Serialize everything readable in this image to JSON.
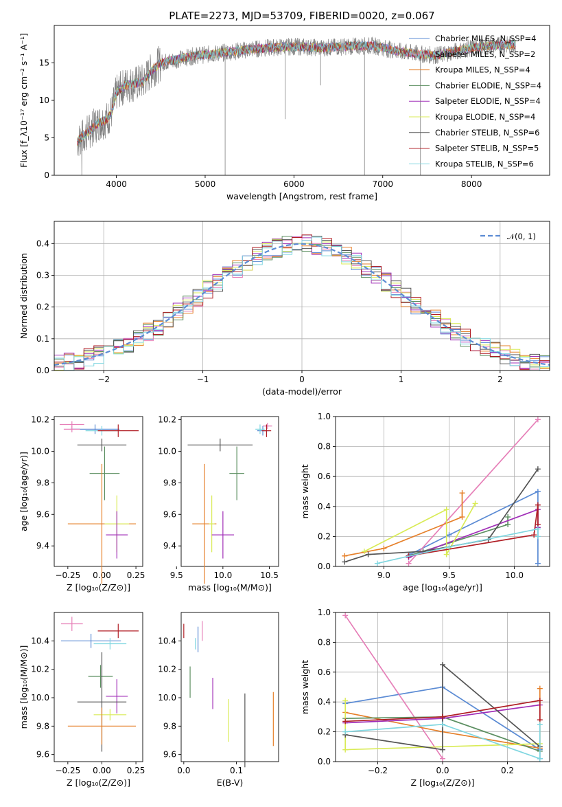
{
  "title": "PLATE=2273, MJD=53709, FIBERID=0020, z=0.067",
  "chart_data": [
    {
      "id": "spectrum",
      "type": "line",
      "xlabel": "wavelength [Angstrom, rest frame]",
      "ylabel": "Flux [f_λ10⁻¹⁷ erg cm⁻² s⁻¹ A⁻¹]",
      "xlim": [
        3300,
        8880
      ],
      "ylim": [
        0,
        20
      ],
      "xticks": [
        "4000",
        "5000",
        "6000",
        "7000",
        "8000"
      ],
      "yticks": [
        "0",
        "5",
        "10",
        "15"
      ],
      "grid": false,
      "legend_placement": "upper right",
      "continuum": {
        "x": [
          3560,
          3700,
          3800,
          3900,
          3950,
          4000,
          4100,
          4200,
          4300,
          4400,
          4500,
          4700,
          4900,
          5100,
          5300,
          5500,
          5700,
          6000,
          6300,
          6600,
          6900,
          7200,
          7400,
          7600,
          7800,
          8000,
          8200,
          8400,
          8500
        ],
        "y": [
          4.5,
          6.0,
          7.0,
          7.5,
          8.5,
          11.0,
          12.0,
          12.2,
          12.5,
          14.0,
          15.0,
          15.5,
          16.0,
          16.2,
          16.5,
          16.8,
          17.0,
          17.2,
          17.0,
          17.2,
          17.3,
          16.5,
          16.2,
          16.0,
          16.5,
          17.0,
          17.3,
          17.4,
          17.5
        ]
      },
      "series": [
        {
          "name": "Chabrier MILES, N_SSP=4",
          "color": "#5b8bd4"
        },
        {
          "name": "Salpeter MILES, N_SSP=2",
          "color": "#e67fb8"
        },
        {
          "name": "Kroupa MILES, N_SSP=4",
          "color": "#e6802a"
        },
        {
          "name": "Chabrier ELODIE, N_SSP=4",
          "color": "#5c8f61"
        },
        {
          "name": "Salpeter ELODIE, N_SSP=4",
          "color": "#a12fb8"
        },
        {
          "name": "Kroupa ELODIE, N_SSP=4",
          "color": "#d9eb56"
        },
        {
          "name": "Chabrier STELIB, N_SSP=6",
          "color": "#555555"
        },
        {
          "name": "Salpeter STELIB, N_SSP=5",
          "color": "#b01e25"
        },
        {
          "name": "Kroupa STELIB, N_SSP=6",
          "color": "#7fd6e0"
        }
      ]
    },
    {
      "id": "residuals",
      "type": "histogram",
      "xlabel": "(data-model)/error",
      "ylabel": "Normed distribution",
      "xlim": [
        -2.5,
        2.5
      ],
      "ylim": [
        0,
        0.47
      ],
      "xticks": [
        "−2",
        "−1",
        "0",
        "1",
        "2"
      ],
      "yticks": [
        "0.0",
        "0.1",
        "0.2",
        "0.3",
        "0.4"
      ],
      "grid": true,
      "legend_placement": "upper right",
      "reference_curve": {
        "name": "𝒩(0, 1)",
        "color": "#5b8bd4"
      }
    },
    {
      "id": "age-vs-Z",
      "type": "errorbar",
      "xlabel": "Z [log₁₀(Z/Z⊙)]",
      "ylabel": "age  [log₁₀(age/yr)]",
      "xlim": [
        -0.35,
        0.3
      ],
      "ylim": [
        9.27,
        10.22
      ],
      "xticks": [
        "−0.25",
        "0.00",
        "0.25"
      ],
      "yticks": [
        "9.4",
        "9.6",
        "9.8",
        "10.0",
        "10.2"
      ],
      "points": [
        {
          "x": -0.22,
          "y": 10.17,
          "ex": 0.09,
          "ey": 0.02,
          "color": "#e67fb8"
        },
        {
          "x": -0.05,
          "y": 10.14,
          "ex": 0.18,
          "ey": 0.03,
          "color": "#5b8bd4"
        },
        {
          "x": -0.22,
          "y": 10.14,
          "ex": 0.06,
          "ey": 0.02,
          "color": "#e67fb8"
        },
        {
          "x": 0.0,
          "y": 10.13,
          "ex": 0.12,
          "ey": 0.03,
          "color": "#7fd6e0"
        },
        {
          "x": 0.12,
          "y": 10.13,
          "ex": 0.15,
          "ey": 0.04,
          "color": "#b01e25"
        },
        {
          "x": 0.0,
          "y": 10.04,
          "ex": 0.18,
          "ey": 0.04,
          "color": "#555555"
        },
        {
          "x": 0.02,
          "y": 9.86,
          "ex": 0.11,
          "ey": 0.17,
          "color": "#5c8f61"
        },
        {
          "x": 0.0,
          "y": 9.54,
          "ex": 0.25,
          "ey": 0.38,
          "color": "#e6802a"
        },
        {
          "x": 0.11,
          "y": 9.54,
          "ex": 0.09,
          "ey": 0.18,
          "color": "#d9eb56"
        },
        {
          "x": 0.11,
          "y": 9.47,
          "ex": 0.08,
          "ey": 0.15,
          "color": "#a12fb8"
        }
      ]
    },
    {
      "id": "age-vs-mass",
      "type": "errorbar",
      "xlabel": "mass [log₁₀(M/M⊙)]",
      "ylabel": "",
      "xlim": [
        9.55,
        10.6
      ],
      "ylim": [
        9.27,
        10.22
      ],
      "xticks": [
        "9.5",
        "10.0",
        "10.5"
      ],
      "yticks": [
        "9.4",
        "9.6",
        "9.8",
        "10.0",
        "10.2"
      ],
      "points": [
        {
          "x": 10.48,
          "y": 10.16,
          "ex": 0.05,
          "ey": 0.02,
          "color": "#e67fb8"
        },
        {
          "x": 10.43,
          "y": 10.13,
          "ex": 0.06,
          "ey": 0.03,
          "color": "#5b8bd4"
        },
        {
          "x": 10.4,
          "y": 10.14,
          "ex": 0.05,
          "ey": 0.03,
          "color": "#7fd6e0"
        },
        {
          "x": 10.47,
          "y": 10.13,
          "ex": 0.05,
          "ey": 0.04,
          "color": "#b01e25"
        },
        {
          "x": 9.97,
          "y": 10.04,
          "ex": 0.35,
          "ey": 0.04,
          "color": "#555555"
        },
        {
          "x": 10.15,
          "y": 9.86,
          "ex": 0.08,
          "ey": 0.17,
          "color": "#5c8f61"
        },
        {
          "x": 9.8,
          "y": 9.54,
          "ex": 0.13,
          "ey": 0.38,
          "color": "#e6802a"
        },
        {
          "x": 9.88,
          "y": 9.54,
          "ex": 0.03,
          "ey": 0.18,
          "color": "#d9eb56"
        },
        {
          "x": 10.0,
          "y": 9.47,
          "ex": 0.12,
          "ey": 0.15,
          "color": "#a12fb8"
        }
      ]
    },
    {
      "id": "massweight-vs-age",
      "type": "line",
      "xlabel": "age  [log₁₀(age/yr)]",
      "ylabel": "mass weight",
      "xlim": [
        8.63,
        10.27
      ],
      "ylim": [
        0,
        1.0
      ],
      "xticks": [
        "9.0",
        "9.5",
        "10.0"
      ],
      "yticks": [
        "0.0",
        "0.2",
        "0.4",
        "0.6",
        "0.8",
        "1.0"
      ],
      "grid": true,
      "series": [
        {
          "color": "#5b8bd4",
          "x": [
            9.2,
            9.5,
            10.18,
            10.18
          ],
          "y": [
            0.08,
            0.21,
            0.5,
            0.02
          ]
        },
        {
          "color": "#e67fb8",
          "x": [
            9.19,
            10.18
          ],
          "y": [
            0.02,
            0.98
          ]
        },
        {
          "color": "#e6802a",
          "x": [
            8.7,
            9.0,
            9.6,
            9.6
          ],
          "y": [
            0.07,
            0.12,
            0.33,
            0.49
          ]
        },
        {
          "color": "#5c8f61",
          "x": [
            9.19,
            9.95,
            9.95
          ],
          "y": [
            0.07,
            0.28,
            0.33
          ]
        },
        {
          "color": "#a12fb8",
          "x": [
            9.19,
            10.18,
            10.18
          ],
          "y": [
            0.06,
            0.38,
            0.26
          ]
        },
        {
          "color": "#d9eb56",
          "x": [
            8.85,
            9.48,
            9.48,
            9.7
          ],
          "y": [
            0.1,
            0.38,
            0.08,
            0.42
          ]
        },
        {
          "color": "#555555",
          "x": [
            8.7,
            8.88,
            9.3,
            9.8,
            10.18
          ],
          "y": [
            0.03,
            0.08,
            0.1,
            0.18,
            0.65
          ]
        },
        {
          "color": "#b01e25",
          "x": [
            9.19,
            10.15,
            10.18,
            10.18
          ],
          "y": [
            0.07,
            0.21,
            0.41,
            0.28
          ]
        },
        {
          "color": "#7fd6e0",
          "x": [
            8.95,
            9.5,
            10.18,
            10.18
          ],
          "y": [
            0.02,
            0.13,
            0.25,
            0.2
          ]
        }
      ]
    },
    {
      "id": "mass-vs-Z",
      "type": "errorbar",
      "xlabel": "Z [log₁₀(Z/Z⊙)]",
      "ylabel": "mass [log₁₀(M/M⊙)]",
      "xlim": [
        -0.35,
        0.3
      ],
      "ylim": [
        9.55,
        10.6
      ],
      "xticks": [
        "−0.25",
        "0.00",
        "0.25"
      ],
      "yticks": [
        "9.6",
        "9.8",
        "10.0",
        "10.2",
        "10.4"
      ],
      "points": [
        {
          "x": -0.22,
          "y": 10.52,
          "ex": 0.08,
          "ey": 0.05,
          "color": "#e67fb8"
        },
        {
          "x": 0.12,
          "y": 10.47,
          "ex": 0.15,
          "ey": 0.05,
          "color": "#b01e25"
        },
        {
          "x": -0.08,
          "y": 10.4,
          "ex": 0.22,
          "ey": 0.05,
          "color": "#5b8bd4"
        },
        {
          "x": 0.06,
          "y": 10.38,
          "ex": 0.12,
          "ey": 0.04,
          "color": "#7fd6e0"
        },
        {
          "x": -0.01,
          "y": 10.15,
          "ex": 0.09,
          "ey": 0.08,
          "color": "#5c8f61"
        },
        {
          "x": 0.11,
          "y": 10.01,
          "ex": 0.08,
          "ey": 0.12,
          "color": "#a12fb8"
        },
        {
          "x": 0.0,
          "y": 9.97,
          "ex": 0.18,
          "ey": 0.35,
          "color": "#555555"
        },
        {
          "x": 0.06,
          "y": 9.88,
          "ex": 0.12,
          "ey": 0.04,
          "color": "#d9eb56"
        },
        {
          "x": 0.0,
          "y": 9.8,
          "ex": 0.25,
          "ey": 0.13,
          "color": "#e6802a"
        }
      ]
    },
    {
      "id": "mass-vs-EBV",
      "type": "errorbar",
      "xlabel": "E(B-V)",
      "ylabel": "",
      "xlim": [
        -0.005,
        0.18
      ],
      "ylim": [
        9.55,
        10.6
      ],
      "xticks": [
        "0.0",
        "0.1"
      ],
      "yticks": [
        "9.6",
        "9.8",
        "10.0",
        "10.2",
        "10.4"
      ],
      "points": [
        {
          "x": 0.0,
          "y": 10.47,
          "ex": 0,
          "ey": 0.05,
          "color": "#b01e25"
        },
        {
          "x": 0.035,
          "y": 10.47,
          "ex": 0,
          "ey": 0.07,
          "color": "#e67fb8"
        },
        {
          "x": 0.027,
          "y": 10.41,
          "ex": 0,
          "ey": 0.09,
          "color": "#5b8bd4"
        },
        {
          "x": 0.022,
          "y": 10.38,
          "ex": 0,
          "ey": 0.04,
          "color": "#7fd6e0"
        },
        {
          "x": 0.012,
          "y": 10.11,
          "ex": 0,
          "ey": 0.11,
          "color": "#5c8f61"
        },
        {
          "x": 0.055,
          "y": 10.03,
          "ex": 0,
          "ey": 0.11,
          "color": "#a12fb8"
        },
        {
          "x": 0.085,
          "y": 9.84,
          "ex": 0,
          "ey": 0.15,
          "color": "#d9eb56"
        },
        {
          "x": 0.116,
          "y": 9.77,
          "ex": 0,
          "ey": 0.26,
          "color": "#555555"
        },
        {
          "x": 0.17,
          "y": 9.85,
          "ex": 0,
          "ey": 0.19,
          "color": "#e6802a"
        }
      ]
    },
    {
      "id": "massweight-vs-Z",
      "type": "line",
      "xlabel": "Z [log₁₀(Z/Z⊙)]",
      "ylabel": "mass weight",
      "xlim": [
        -0.33,
        0.33
      ],
      "ylim": [
        0,
        1.0
      ],
      "xticks": [
        "−0.2",
        "0.0",
        "0.2"
      ],
      "yticks": [
        "0.0",
        "0.2",
        "0.4",
        "0.6",
        "0.8",
        "1.0"
      ],
      "grid": true,
      "series": [
        {
          "color": "#5b8bd4",
          "x": [
            -0.3,
            0.0,
            0.3,
            0.3
          ],
          "y": [
            0.39,
            0.5,
            0.08,
            0.02
          ]
        },
        {
          "color": "#e67fb8",
          "x": [
            -0.3,
            0.0
          ],
          "y": [
            0.98,
            0.02
          ]
        },
        {
          "color": "#e6802a",
          "x": [
            -0.3,
            0.0,
            0.3,
            0.3
          ],
          "y": [
            0.33,
            0.2,
            0.09,
            0.49
          ]
        },
        {
          "color": "#5c8f61",
          "x": [
            -0.3,
            0.0,
            0.3
          ],
          "y": [
            0.29,
            0.3,
            0.07
          ]
        },
        {
          "color": "#a12fb8",
          "x": [
            -0.3,
            0.0,
            0.3
          ],
          "y": [
            0.26,
            0.29,
            0.38
          ]
        },
        {
          "color": "#d9eb56",
          "x": [
            -0.3,
            -0.3,
            0.0,
            0.3
          ],
          "y": [
            0.41,
            0.08,
            0.1,
            0.12
          ]
        },
        {
          "color": "#555555",
          "x": [
            -0.3,
            0.0,
            0.0,
            0.3
          ],
          "y": [
            0.18,
            0.08,
            0.65,
            0.1
          ]
        },
        {
          "color": "#b01e25",
          "x": [
            -0.3,
            0.0,
            0.3,
            0.3
          ],
          "y": [
            0.27,
            0.3,
            0.41,
            0.28
          ]
        },
        {
          "color": "#7fd6e0",
          "x": [
            -0.3,
            0.0,
            0.3,
            0.3
          ],
          "y": [
            0.2,
            0.25,
            0.02,
            0.25
          ]
        }
      ]
    }
  ]
}
